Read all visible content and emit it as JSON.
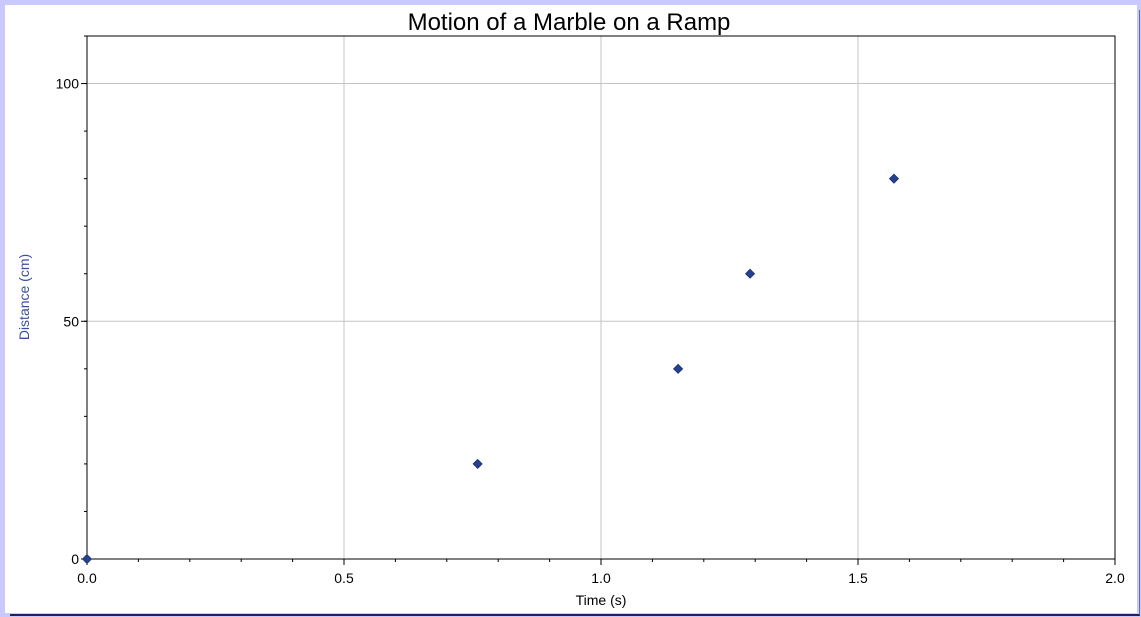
{
  "chart_data": {
    "type": "scatter",
    "title": "Motion of a Marble on a Ramp",
    "xlabel": "Time (s)",
    "ylabel": "Distance (cm)",
    "xlim": [
      0,
      2.0
    ],
    "ylim": [
      0,
      110
    ],
    "x_ticks": [
      "0.0",
      "0.5",
      "1.0",
      "1.5",
      "2.0"
    ],
    "y_ticks": [
      "0",
      "50",
      "100"
    ],
    "grid": true,
    "marker": "diamond",
    "marker_color": "#26418f",
    "points": [
      {
        "x": 0.0,
        "y": 0
      },
      {
        "x": 0.76,
        "y": 20
      },
      {
        "x": 1.15,
        "y": 40
      },
      {
        "x": 1.29,
        "y": 60
      },
      {
        "x": 1.57,
        "y": 80
      }
    ]
  }
}
